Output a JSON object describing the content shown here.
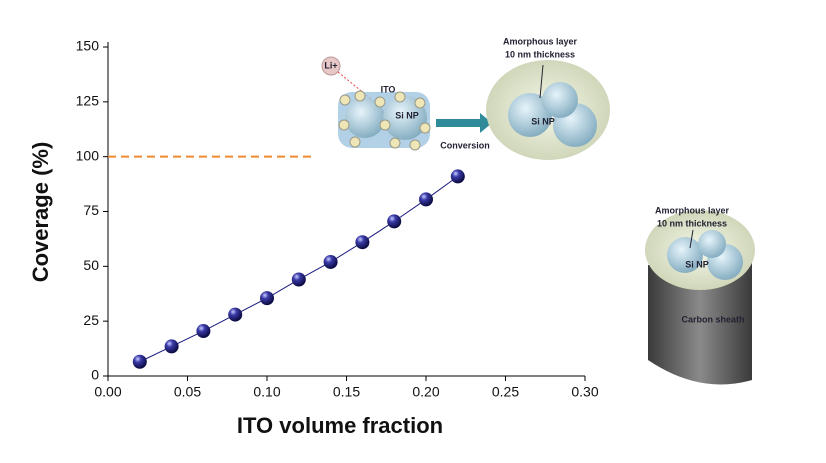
{
  "chart_data": {
    "type": "line",
    "x_label": "ITO volume fraction",
    "y_label": "Coverage (%)",
    "x": [
      0.02,
      0.04,
      0.06,
      0.08,
      0.1,
      0.12,
      0.14,
      0.16,
      0.18,
      0.2,
      0.22
    ],
    "series": [
      {
        "color": "#1a1a80",
        "values": [
          6.5,
          13.5,
          20.5,
          28,
          35.5,
          44,
          52,
          61,
          70.5,
          80.5,
          91
        ]
      }
    ],
    "xlim": [
      0,
      0.3
    ],
    "ylim": [
      0,
      150
    ],
    "xticks": [
      {
        "value": 0,
        "label": "0.00"
      },
      {
        "value": 0.05,
        "label": "0.05"
      },
      {
        "value": 0.1,
        "label": "0.10"
      },
      {
        "value": 0.15,
        "label": "0.15"
      },
      {
        "value": 0.2,
        "label": "0.20"
      },
      {
        "value": 0.25,
        "label": "0.25"
      },
      {
        "value": 0.3,
        "label": "0.30"
      }
    ],
    "yticks": [
      0,
      25,
      50,
      75,
      100,
      125,
      150
    ],
    "reference_line": {
      "y": 100,
      "x_end": 0.13,
      "color": "#f08a30"
    },
    "annotations": [
      "Li+",
      "ITO",
      "Si NP",
      "Conversion",
      "Amorphous layer",
      "10 nm thickness",
      "Si NP",
      "Amorphous layer",
      "10 nm thickness",
      "Si NP",
      "Carbon sheath"
    ]
  }
}
